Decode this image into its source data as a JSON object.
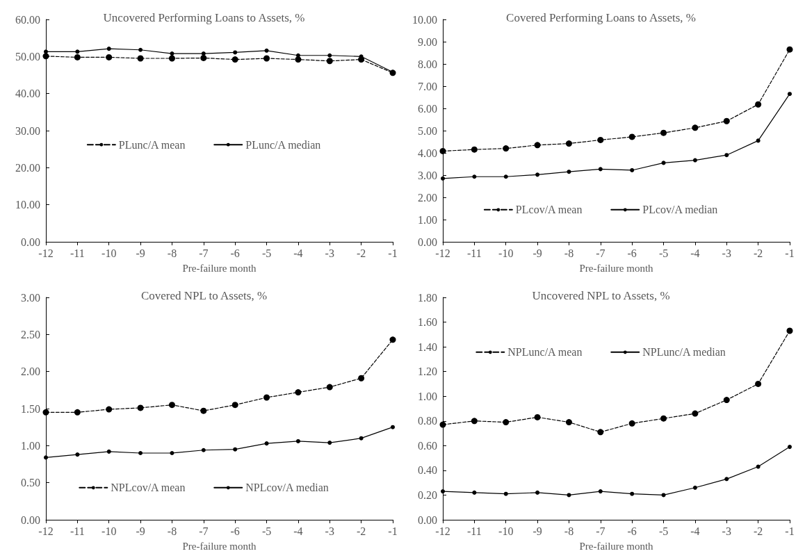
{
  "chart_data": [
    {
      "type": "line",
      "title": "Uncovered Performing Loans to Assets, %",
      "xlabel": "Pre-failure month",
      "categories": [
        "-12",
        "-11",
        "-10",
        "-9",
        "-8",
        "-7",
        "-6",
        "-5",
        "-4",
        "-3",
        "-2",
        "-1"
      ],
      "ylim": [
        0,
        60
      ],
      "yticks": [
        {
          "value": 0,
          "label": "0.00"
        },
        {
          "value": 10,
          "label": "10.00"
        },
        {
          "value": 20,
          "label": "20.00"
        },
        {
          "value": 30,
          "label": "30.00"
        },
        {
          "value": 40,
          "label": "40.00"
        },
        {
          "value": 50,
          "label": "50.00"
        },
        {
          "value": 60,
          "label": "60.00"
        }
      ],
      "grid": false,
      "legend": "center",
      "marker": "circle",
      "series": [
        {
          "name": "PLunc/A mean",
          "color": "#000000",
          "line_style": "dashed",
          "values": [
            50.1,
            49.8,
            49.8,
            49.5,
            49.5,
            49.6,
            49.2,
            49.5,
            49.2,
            48.8,
            49.2,
            45.6
          ]
        },
        {
          "name": "PLunc/A median",
          "color": "#000000",
          "line_style": "solid",
          "values": [
            51.3,
            51.3,
            52.1,
            51.8,
            50.8,
            50.8,
            51.1,
            51.6,
            50.3,
            50.3,
            50.0,
            45.8
          ]
        }
      ]
    },
    {
      "type": "line",
      "title": "Covered Performing Loans to Assets, %",
      "xlabel": "Pre-failure month",
      "categories": [
        "-12",
        "-11",
        "-10",
        "-9",
        "-8",
        "-7",
        "-6",
        "-5",
        "-4",
        "-3",
        "-2",
        "-1"
      ],
      "ylim": [
        0,
        10
      ],
      "yticks": [
        {
          "value": 0,
          "label": "0.00"
        },
        {
          "value": 1,
          "label": "1.00"
        },
        {
          "value": 2,
          "label": "2.00"
        },
        {
          "value": 3,
          "label": "3.00"
        },
        {
          "value": 4,
          "label": "4.00"
        },
        {
          "value": 5,
          "label": "5.00"
        },
        {
          "value": 6,
          "label": "6.00"
        },
        {
          "value": 7,
          "label": "7.00"
        },
        {
          "value": 8,
          "label": "8.00"
        },
        {
          "value": 9,
          "label": "9.00"
        },
        {
          "value": 10,
          "label": "10.00"
        }
      ],
      "grid": false,
      "legend": "bottom",
      "marker": "circle",
      "series": [
        {
          "name": "PLcov/A mean",
          "color": "#000000",
          "line_style": "dashed",
          "values": [
            4.08,
            4.15,
            4.2,
            4.35,
            4.42,
            4.58,
            4.72,
            4.9,
            5.13,
            5.43,
            6.18,
            8.65
          ]
        },
        {
          "name": "PLcov/A median",
          "color": "#000000",
          "line_style": "solid",
          "values": [
            2.85,
            2.93,
            2.93,
            3.02,
            3.15,
            3.27,
            3.22,
            3.55,
            3.67,
            3.9,
            4.55,
            6.65
          ]
        }
      ]
    },
    {
      "type": "line",
      "title": "Covered NPL to Assets, %",
      "xlabel": "Pre-failure month",
      "categories": [
        "-12",
        "-11",
        "-10",
        "-9",
        "-8",
        "-7",
        "-6",
        "-5",
        "-4",
        "-3",
        "-2",
        "-1"
      ],
      "ylim": [
        0,
        3
      ],
      "yticks": [
        {
          "value": 0,
          "label": "0.00"
        },
        {
          "value": 0.5,
          "label": "0.50"
        },
        {
          "value": 1,
          "label": "1.00"
        },
        {
          "value": 1.5,
          "label": "1.50"
        },
        {
          "value": 2,
          "label": "2.00"
        },
        {
          "value": 2.5,
          "label": "2.50"
        },
        {
          "value": 3,
          "label": "3.00"
        }
      ],
      "grid": false,
      "legend": "bottom",
      "marker": "circle",
      "series": [
        {
          "name": "NPLcov/A mean",
          "color": "#000000",
          "line_style": "dashed",
          "values": [
            1.45,
            1.45,
            1.49,
            1.51,
            1.55,
            1.47,
            1.55,
            1.65,
            1.72,
            1.79,
            1.91,
            2.43
          ]
        },
        {
          "name": "NPLcov/A median",
          "color": "#000000",
          "line_style": "solid",
          "values": [
            0.84,
            0.88,
            0.92,
            0.9,
            0.9,
            0.94,
            0.95,
            1.03,
            1.06,
            1.04,
            1.1,
            1.25
          ]
        }
      ]
    },
    {
      "type": "line",
      "title": "Uncovered NPL to Assets, %",
      "xlabel": "Pre-failure month",
      "categories": [
        "-12",
        "-11",
        "-10",
        "-9",
        "-8",
        "-7",
        "-6",
        "-5",
        "-4",
        "-3",
        "-2",
        "-1"
      ],
      "ylim": [
        0,
        1.8
      ],
      "yticks": [
        {
          "value": 0,
          "label": "0.00"
        },
        {
          "value": 0.2,
          "label": "0.20"
        },
        {
          "value": 0.4,
          "label": "0.40"
        },
        {
          "value": 0.6,
          "label": "0.60"
        },
        {
          "value": 0.8,
          "label": "0.80"
        },
        {
          "value": 1,
          "label": "1.00"
        },
        {
          "value": 1.2,
          "label": "1.20"
        },
        {
          "value": 1.4,
          "label": "1.40"
        },
        {
          "value": 1.6,
          "label": "1.60"
        },
        {
          "value": 1.8,
          "label": "1.80"
        }
      ],
      "grid": false,
      "legend": "top",
      "marker": "circle",
      "series": [
        {
          "name": "NPLunc/A mean",
          "color": "#000000",
          "line_style": "dashed",
          "values": [
            0.77,
            0.8,
            0.79,
            0.83,
            0.79,
            0.71,
            0.78,
            0.82,
            0.86,
            0.97,
            1.1,
            1.53
          ]
        },
        {
          "name": "NPLunc/A median",
          "color": "#000000",
          "line_style": "solid",
          "values": [
            0.23,
            0.22,
            0.21,
            0.22,
            0.2,
            0.23,
            0.21,
            0.2,
            0.26,
            0.33,
            0.43,
            0.59
          ]
        }
      ]
    }
  ]
}
